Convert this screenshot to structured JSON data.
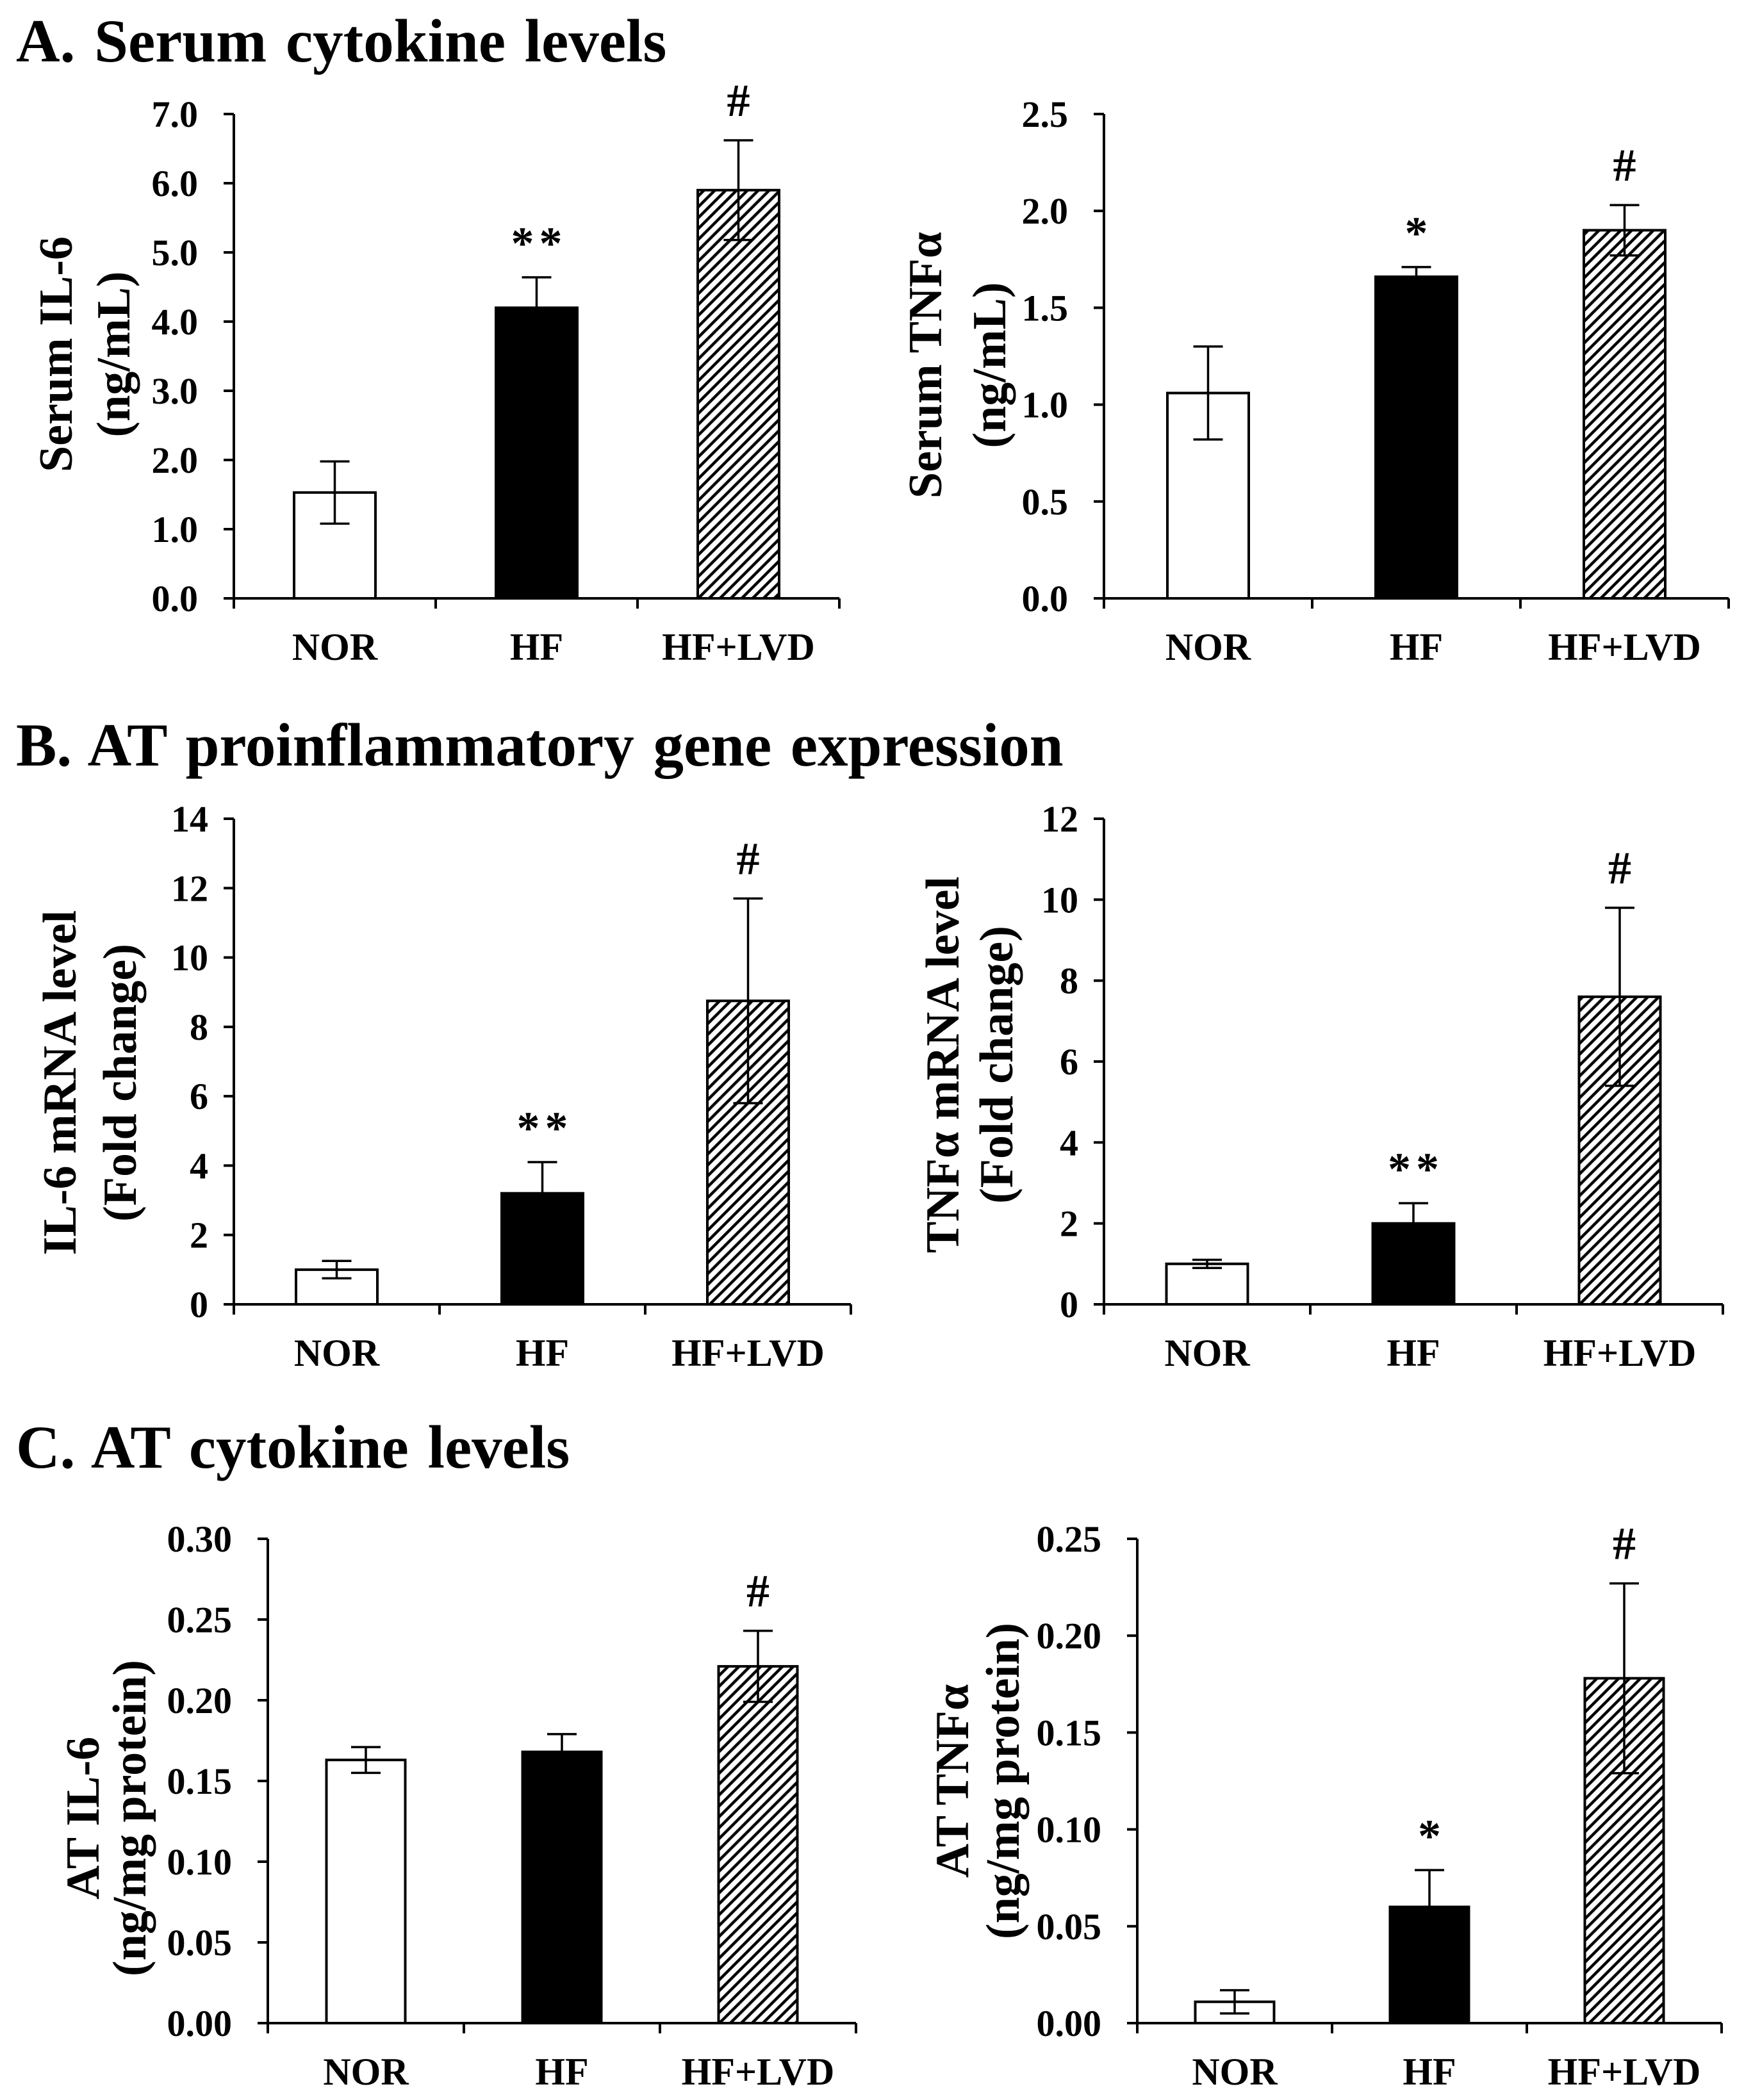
{
  "sections": [
    {
      "heading": "A. Serum cytokine levels"
    },
    {
      "heading": "B. AT proinflammatory gene expression"
    },
    {
      "heading": "C. AT cytokine levels"
    }
  ],
  "chart_data": [
    {
      "type": "bar",
      "ylabel": [
        "Serum IL-6",
        "(ng/mL)"
      ],
      "categories": [
        "NOR",
        "HF",
        "HF+LVD"
      ],
      "values": [
        1.53,
        4.2,
        5.9
      ],
      "errors": [
        0.45,
        0.44,
        0.72
      ],
      "annotations": [
        null,
        "**",
        "#"
      ],
      "ylim": [
        0,
        7
      ],
      "ytick_labels": [
        "0.0",
        "1.0",
        "2.0",
        "3.0",
        "4.0",
        "5.0",
        "6.0",
        "7.0"
      ]
    },
    {
      "type": "bar",
      "ylabel": [
        "Serum TNFα",
        "(ng/mL)"
      ],
      "categories": [
        "NOR",
        "HF",
        "HF+LVD"
      ],
      "values": [
        1.06,
        1.66,
        1.9
      ],
      "errors": [
        0.24,
        0.05,
        0.13
      ],
      "annotations": [
        null,
        "*",
        "#"
      ],
      "ylim": [
        0,
        2.5
      ],
      "ytick_labels": [
        "0.0",
        "0.5",
        "1.0",
        "1.5",
        "2.0",
        "2.5"
      ]
    },
    {
      "type": "bar",
      "ylabel": [
        "IL-6 mRNA level",
        "(Fold change)"
      ],
      "categories": [
        "NOR",
        "HF",
        "HF+LVD"
      ],
      "values": [
        1.0,
        3.2,
        8.75
      ],
      "errors": [
        0.25,
        0.9,
        2.95
      ],
      "annotations": [
        null,
        "**",
        "#"
      ],
      "ylim": [
        0,
        14
      ],
      "ytick_labels": [
        "0",
        "2",
        "4",
        "6",
        "8",
        "10",
        "12",
        "14"
      ]
    },
    {
      "type": "bar",
      "ylabel": [
        "TNFα mRNA level",
        "(Fold change)"
      ],
      "categories": [
        "NOR",
        "HF",
        "HF+LVD"
      ],
      "values": [
        1.0,
        2.0,
        7.6
      ],
      "errors": [
        0.1,
        0.5,
        2.2
      ],
      "annotations": [
        null,
        "**",
        "#"
      ],
      "ylim": [
        0,
        12
      ],
      "ytick_labels": [
        "0",
        "2",
        "4",
        "6",
        "8",
        "10",
        "12"
      ]
    },
    {
      "type": "bar",
      "ylabel": [
        "AT IL-6",
        "(ng/mg protein)"
      ],
      "categories": [
        "NOR",
        "HF",
        "HF+LVD"
      ],
      "values": [
        0.163,
        0.168,
        0.221
      ],
      "errors": [
        0.008,
        0.011,
        0.022
      ],
      "annotations": [
        null,
        null,
        "#"
      ],
      "ylim": [
        0,
        0.3
      ],
      "ytick_labels": [
        "0.00",
        "0.05",
        "0.10",
        "0.15",
        "0.20",
        "0.25",
        "0.30"
      ]
    },
    {
      "type": "bar",
      "ylabel": [
        "AT TNFα",
        "(ng/mg protein)"
      ],
      "categories": [
        "NOR",
        "HF",
        "HF+LVD"
      ],
      "values": [
        0.011,
        0.06,
        0.178
      ],
      "errors": [
        0.006,
        0.019,
        0.049
      ],
      "annotations": [
        null,
        "*",
        "#"
      ],
      "ylim": [
        0,
        0.25
      ],
      "ytick_labels": [
        "0.00",
        "0.05",
        "0.10",
        "0.15",
        "0.20",
        "0.25"
      ]
    }
  ]
}
